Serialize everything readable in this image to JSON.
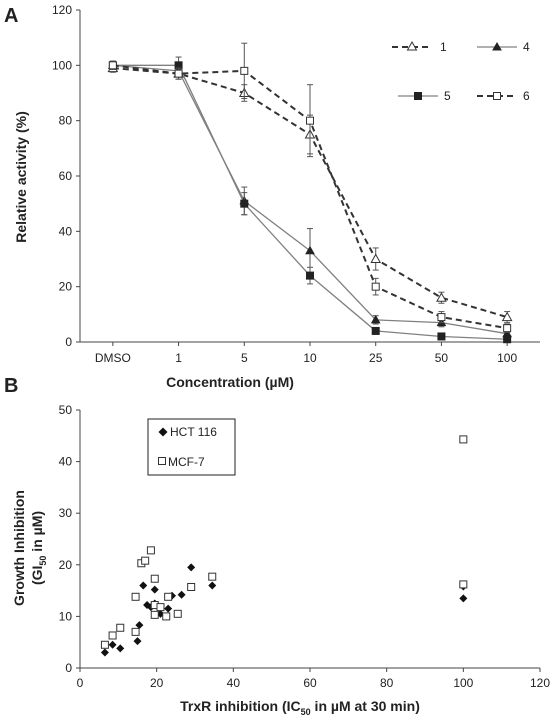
{
  "panels": {
    "a": {
      "label": "A"
    },
    "b": {
      "label": "B"
    }
  },
  "chart_data": [
    {
      "type": "line",
      "panel": "A",
      "categories": [
        "DMSO",
        "1",
        "5",
        "10",
        "25",
        "50",
        "100"
      ],
      "xlabel": "Concentration (µM)",
      "ylabel": "Relative activity (%)",
      "ylim": [
        0,
        120
      ],
      "yticks": [
        "0",
        "20",
        "40",
        "60",
        "80",
        "100",
        "120"
      ],
      "grid": false,
      "legend_position": "top-right",
      "series": [
        {
          "name": "1",
          "marker": "open-triangle",
          "line": "dashed",
          "values": [
            99,
            97,
            90,
            75,
            30,
            16,
            9
          ],
          "errors": [
            1.5,
            2,
            3,
            7,
            4,
            2,
            2
          ]
        },
        {
          "name": "4",
          "marker": "filled-triangle",
          "line": "solid",
          "values": [
            100,
            98,
            51,
            33,
            8,
            7,
            3
          ],
          "errors": [
            1.5,
            2,
            5,
            8,
            1.5,
            1.5,
            1
          ]
        },
        {
          "name": "5",
          "marker": "filled-square",
          "line": "solid",
          "values": [
            100,
            100,
            50,
            24,
            4,
            2,
            1
          ],
          "errors": [
            1.5,
            3,
            4,
            3,
            1,
            1,
            0.5
          ]
        },
        {
          "name": "6",
          "marker": "open-square",
          "line": "dashed",
          "values": [
            100,
            97,
            98,
            80,
            20,
            9,
            5
          ],
          "errors": [
            1.5,
            2,
            10,
            13,
            3,
            2,
            1.5
          ]
        }
      ],
      "colors": {
        "dashed": "#333333",
        "solid": "#808080"
      }
    },
    {
      "type": "scatter",
      "panel": "B",
      "xlabel_main": "TrxR inhibition (IC",
      "xlabel_sub": "50",
      "xlabel_tail": " in µM at 30 min)",
      "ylabel_line1": "Growth Inhibition",
      "ylabel_line2_main": "(GI",
      "ylabel_line2_sub": "50",
      "ylabel_line2_tail": " in µM)",
      "xlim": [
        0,
        120
      ],
      "ylim": [
        0,
        50
      ],
      "xticks": [
        "0",
        "20",
        "40",
        "60",
        "80",
        "100",
        "120"
      ],
      "yticks": [
        "0",
        "10",
        "20",
        "30",
        "40",
        "50"
      ],
      "grid": false,
      "legend_position": "top-left",
      "series": [
        {
          "name": "HCT 116",
          "marker": "filled-diamond",
          "points": [
            [
              6.5,
              3
            ],
            [
              8.5,
              4.5
            ],
            [
              10.5,
              3.8
            ],
            [
              15,
              5.2
            ],
            [
              15.5,
              8.3
            ],
            [
              16.5,
              16
            ],
            [
              17.5,
              12.2
            ],
            [
              18.5,
              11.8
            ],
            [
              19.5,
              12.5
            ],
            [
              19.5,
              15.2
            ],
            [
              21,
              10.5
            ],
            [
              22.5,
              10
            ],
            [
              23,
              11.5
            ],
            [
              24,
              14
            ],
            [
              26.5,
              14.2
            ],
            [
              29,
              19.5
            ],
            [
              34.5,
              16
            ],
            [
              100,
              13.5
            ],
            [
              100,
              15.8
            ]
          ]
        },
        {
          "name": "MCF-7",
          "marker": "open-square",
          "points": [
            [
              6.5,
              4.5
            ],
            [
              8.5,
              6.3
            ],
            [
              10.5,
              7.8
            ],
            [
              14.5,
              7
            ],
            [
              14.5,
              13.8
            ],
            [
              16,
              20.3
            ],
            [
              17,
              20.8
            ],
            [
              18.5,
              22.8
            ],
            [
              19.5,
              10.3
            ],
            [
              19.5,
              12.2
            ],
            [
              19.5,
              17.3
            ],
            [
              21,
              11.8
            ],
            [
              22.5,
              10
            ],
            [
              23,
              13.8
            ],
            [
              25.5,
              10.5
            ],
            [
              29,
              15.7
            ],
            [
              34.5,
              17.7
            ],
            [
              100,
              44.3
            ],
            [
              100,
              16.2
            ]
          ]
        }
      ]
    }
  ]
}
